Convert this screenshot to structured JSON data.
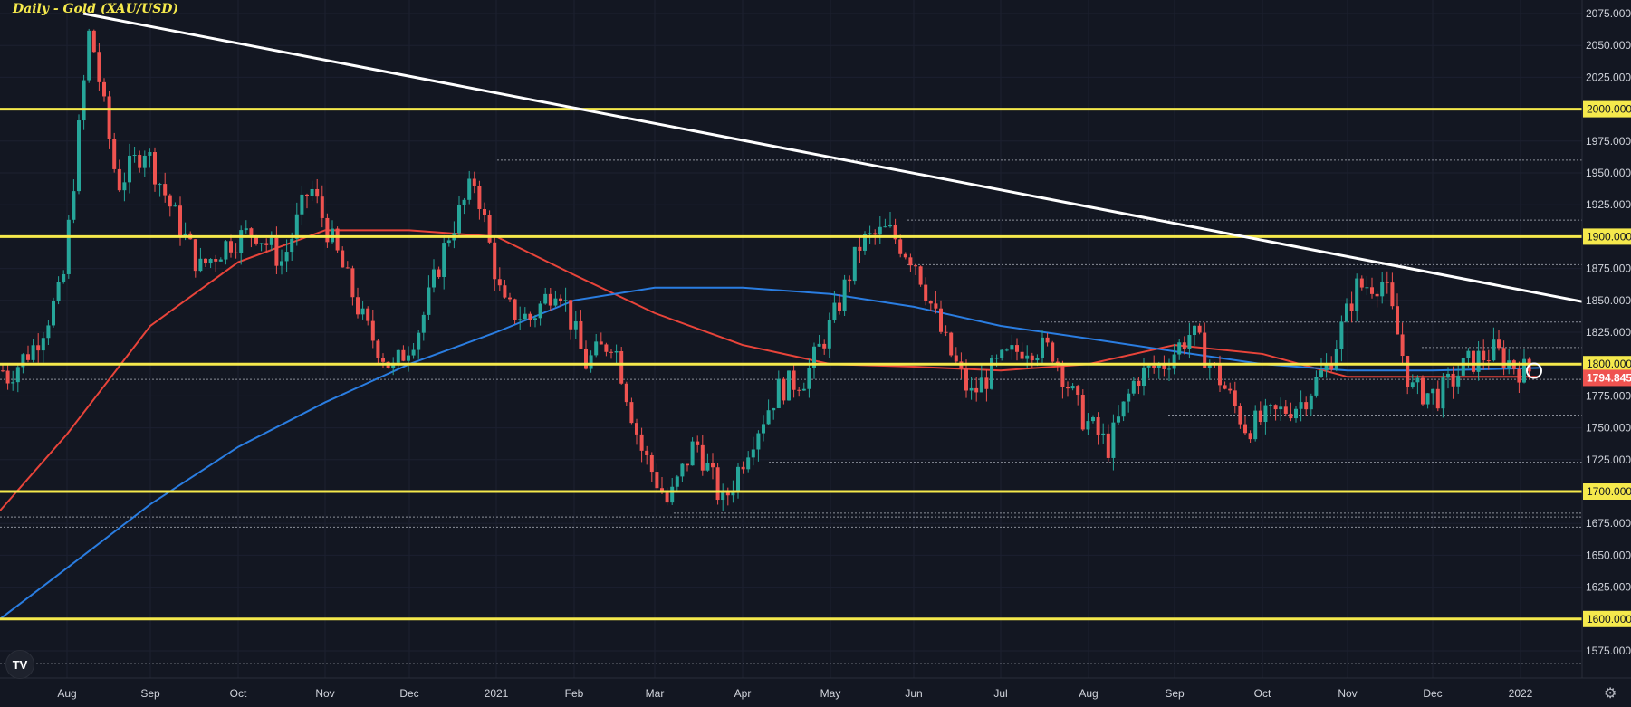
{
  "chart_title": "Daily - Gold (XAU/USD)",
  "logo_text": "TV",
  "settings_icon": "gear-icon",
  "colors": {
    "background": "#131722",
    "up": "#26a69a",
    "down": "#ef5350",
    "level_line": "#f5e94c",
    "trendline": "#ffffff",
    "ma_fast": "#e8443a",
    "ma_slow": "#2a7de1",
    "dotted": "#8a8e99"
  },
  "chart_data": {
    "type": "candlestick",
    "title": "Daily - Gold (XAU/USD)",
    "ylim": [
      1550,
      2085
    ],
    "y_ticks": [
      "1575.000",
      "1600.000",
      "1625.000",
      "1650.000",
      "1675.000",
      "1700.000",
      "1725.000",
      "1750.000",
      "1775.000",
      "1800.000",
      "1825.000",
      "1850.000",
      "1875.000",
      "1900.000",
      "1925.000",
      "1950.000",
      "1975.000",
      "2000.000",
      "2025.000",
      "2050.000",
      "2075.000"
    ],
    "x_labels": [
      "Aug",
      "Sep",
      "Oct",
      "Nov",
      "Dec",
      "2021",
      "Feb",
      "Mar",
      "Apr",
      "May",
      "Jun",
      "Jul",
      "Aug",
      "Sep",
      "Oct",
      "Nov",
      "Dec",
      "2022"
    ],
    "current_price": "1794.845",
    "horizontal_levels": [
      {
        "value": 2000,
        "label": "2000.000"
      },
      {
        "value": 1900,
        "label": "1900.000"
      },
      {
        "value": 1800,
        "label": "1800.000"
      },
      {
        "value": 1700,
        "label": "1700.000"
      },
      {
        "value": 1600,
        "label": "1600.000"
      }
    ],
    "trendline": {
      "from": [
        "Aug",
        2075
      ],
      "to": [
        "2022",
        1849
      ]
    },
    "moving_averages": [
      {
        "color": "red",
        "points": [
          [
            "Jul",
            1685
          ],
          [
            "Aug",
            1745
          ],
          [
            "Sep",
            1830
          ],
          [
            "Oct",
            1880
          ],
          [
            "Nov",
            1905
          ],
          [
            "Dec",
            1905
          ],
          [
            "2021",
            1900
          ],
          [
            "Feb",
            1870
          ],
          [
            "Mar",
            1840
          ],
          [
            "Apr",
            1815
          ],
          [
            "May",
            1800
          ],
          [
            "Jun",
            1798
          ],
          [
            "Jul",
            1795
          ],
          [
            "Aug",
            1800
          ],
          [
            "Sep",
            1815
          ],
          [
            "Oct",
            1808
          ],
          [
            "Nov",
            1790
          ],
          [
            "Dec",
            1790
          ],
          [
            "2022",
            1790
          ]
        ]
      },
      {
        "color": "blue",
        "points": [
          [
            "Jul",
            1600
          ],
          [
            "Aug",
            1640
          ],
          [
            "Sep",
            1690
          ],
          [
            "Oct",
            1735
          ],
          [
            "Nov",
            1770
          ],
          [
            "Dec",
            1800
          ],
          [
            "2021",
            1825
          ],
          [
            "Feb",
            1850
          ],
          [
            "Mar",
            1860
          ],
          [
            "Apr",
            1860
          ],
          [
            "May",
            1855
          ],
          [
            "Jun",
            1845
          ],
          [
            "Jul",
            1830
          ],
          [
            "Aug",
            1820
          ],
          [
            "Sep",
            1810
          ],
          [
            "Oct",
            1800
          ],
          [
            "Nov",
            1795
          ],
          [
            "Dec",
            1795
          ],
          [
            "2022",
            1797
          ]
        ]
      }
    ],
    "ohlc_anchors": [
      [
        "Jul",
        1790
      ],
      [
        "Jul",
        1815
      ],
      [
        "Aug",
        1860
      ],
      [
        "Aug",
        2065
      ],
      [
        "Aug",
        1940
      ],
      [
        "Sep",
        1970
      ],
      [
        "Sep",
        1920
      ],
      [
        "Oct",
        1875
      ],
      [
        "Oct",
        1895
      ],
      [
        "Oct",
        1905
      ],
      [
        "Nov",
        1880
      ],
      [
        "Nov",
        1940
      ],
      [
        "Nov",
        1885
      ],
      [
        "Dec",
        1830
      ],
      [
        "Dec",
        1795
      ],
      [
        "Dec",
        1830
      ],
      [
        "2021",
        1900
      ],
      [
        "2021",
        1945
      ],
      [
        "2021",
        1845
      ],
      [
        "Feb",
        1835
      ],
      [
        "Feb",
        1865
      ],
      [
        "Feb",
        1800
      ],
      [
        "Mar",
        1820
      ],
      [
        "Mar",
        1735
      ],
      [
        "Mar",
        1690
      ],
      [
        "Apr",
        1740
      ],
      [
        "Apr",
        1690
      ],
      [
        "Apr",
        1740
      ],
      [
        "May",
        1780
      ],
      [
        "May",
        1790
      ],
      [
        "May",
        1835
      ],
      [
        "Jun",
        1895
      ],
      [
        "Jun",
        1905
      ],
      [
        "Jun",
        1880
      ],
      [
        "Jun",
        1820
      ],
      [
        "Jul",
        1775
      ],
      [
        "Jul",
        1800
      ],
      [
        "Jul",
        1815
      ],
      [
        "Aug",
        1810
      ],
      [
        "Aug",
        1760
      ],
      [
        "Aug",
        1735
      ],
      [
        "Aug",
        1790
      ],
      [
        "Sep",
        1800
      ],
      [
        "Sep",
        1825
      ],
      [
        "Sep",
        1790
      ],
      [
        "Oct",
        1750
      ],
      [
        "Oct",
        1760
      ],
      [
        "Oct",
        1770
      ],
      [
        "Nov",
        1800
      ],
      [
        "Nov",
        1860
      ],
      [
        "Nov",
        1865
      ],
      [
        "Dec",
        1780
      ],
      [
        "Dec",
        1775
      ],
      [
        "Dec",
        1800
      ],
      [
        "2022",
        1810
      ],
      [
        "2022",
        1795
      ]
    ]
  }
}
